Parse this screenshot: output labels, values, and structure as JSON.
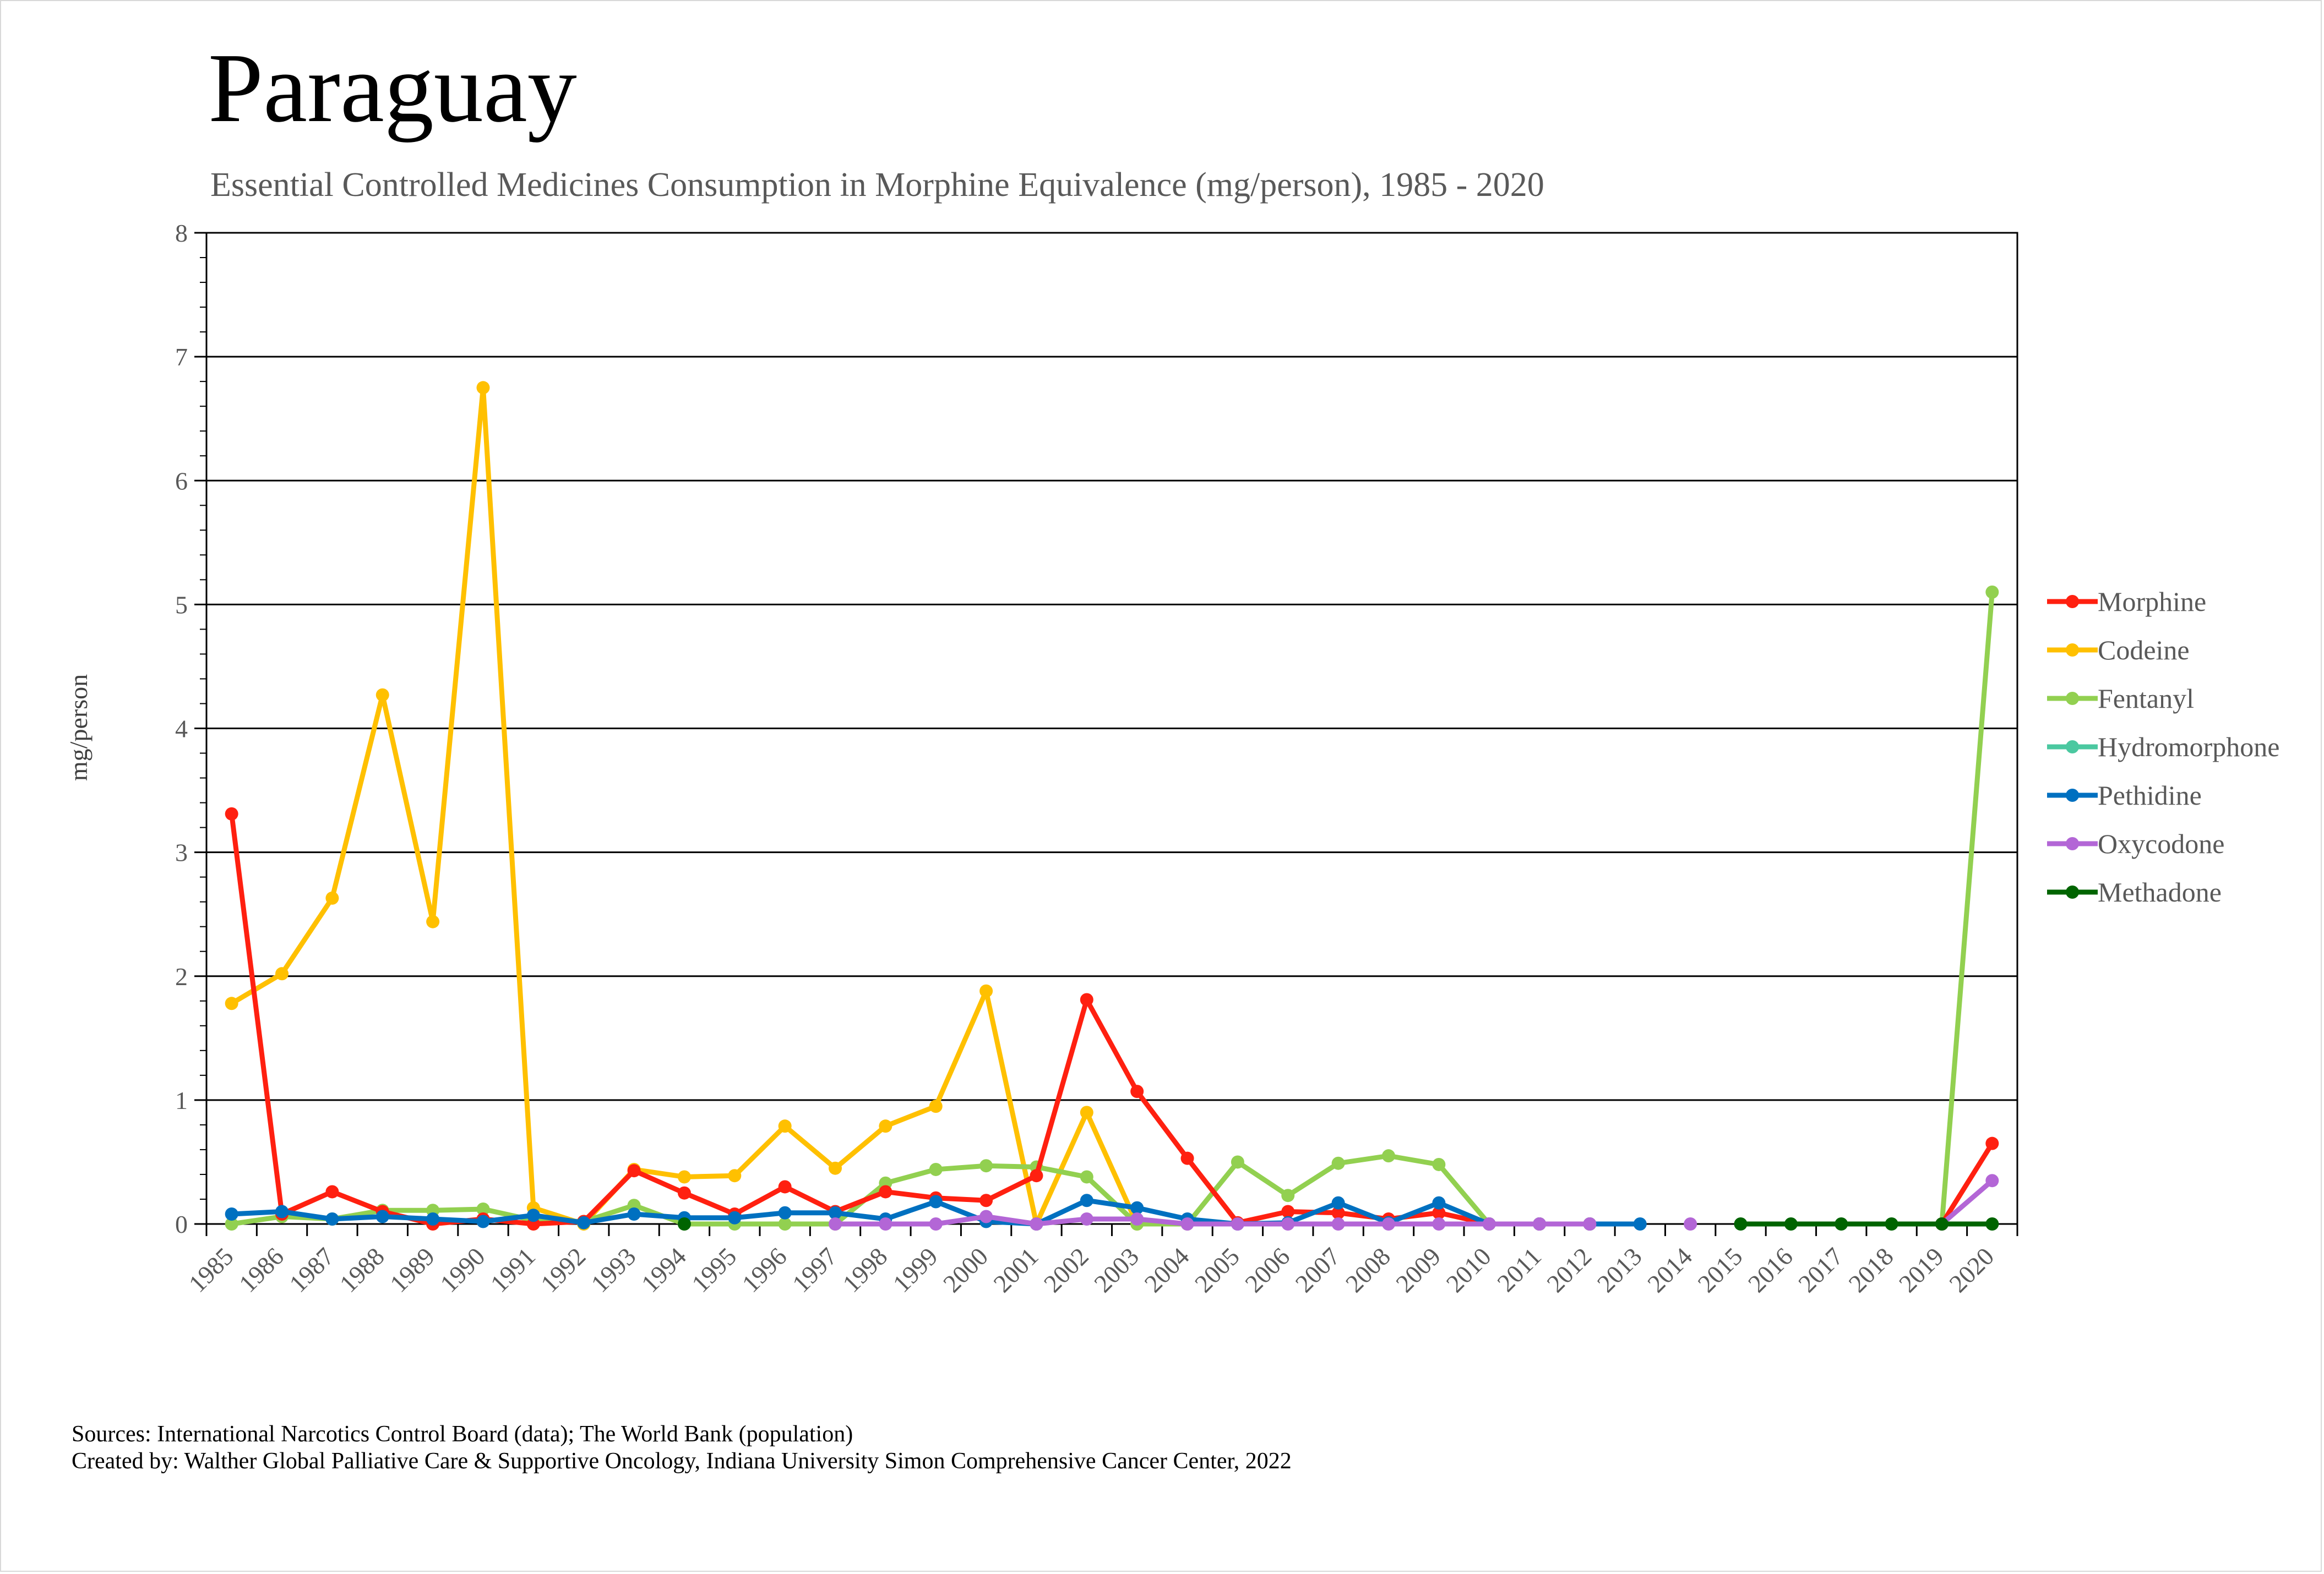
{
  "chart_data": {
    "type": "line",
    "title": "Paraguay",
    "subtitle": "Essential Controlled Medicines Consumption in Morphine Equivalence (mg/person), 1985 - 2020",
    "ylabel": "mg/person",
    "xlabel": "",
    "ylim": [
      0,
      8
    ],
    "yticks": [
      0,
      1,
      2,
      3,
      4,
      5,
      6,
      7,
      8
    ],
    "grid": "horizontal major gridlines",
    "legend": "right",
    "x": [
      "1985",
      "1986",
      "1987",
      "1988",
      "1989",
      "1990",
      "1991",
      "1992",
      "1993",
      "1994",
      "1995",
      "1996",
      "1997",
      "1998",
      "1999",
      "2000",
      "2001",
      "2002",
      "2003",
      "2004",
      "2005",
      "2006",
      "2007",
      "2008",
      "2009",
      "2010",
      "2011",
      "2012",
      "2013",
      "2014",
      "2015",
      "2016",
      "2017",
      "2018",
      "2019",
      "2020"
    ],
    "series": [
      {
        "name": "Codeine",
        "color": "#FFC000",
        "values": [
          1.78,
          2.02,
          2.63,
          4.27,
          2.44,
          6.75,
          0.13,
          0.0,
          0.44,
          0.38,
          0.39,
          0.79,
          0.45,
          0.79,
          0.95,
          1.88,
          0.0,
          0.9,
          0.0,
          null,
          null,
          null,
          null,
          null,
          null,
          null,
          null,
          null,
          null,
          null,
          null,
          null,
          null,
          null,
          null,
          null
        ]
      },
      {
        "name": "Fentanyl",
        "color": "#92D050",
        "values": [
          0.0,
          0.06,
          0.04,
          0.11,
          0.11,
          0.12,
          0.03,
          0.02,
          0.15,
          0.0,
          0.0,
          0.0,
          0.0,
          0.33,
          0.44,
          0.47,
          0.46,
          0.38,
          0.0,
          0.0,
          0.5,
          0.23,
          0.49,
          0.55,
          0.48,
          0.0,
          0.0,
          0.0,
          null,
          null,
          null,
          null,
          null,
          null,
          0.0,
          5.1
        ]
      },
      {
        "name": "Hydromorphone",
        "color": "#4BC8A0",
        "values": [
          null,
          null,
          null,
          null,
          null,
          null,
          null,
          null,
          null,
          null,
          null,
          null,
          null,
          null,
          null,
          null,
          null,
          null,
          null,
          null,
          null,
          null,
          null,
          null,
          null,
          null,
          null,
          null,
          null,
          null,
          null,
          null,
          null,
          null,
          null,
          null
        ]
      },
      {
        "name": "Morphine",
        "color": "#FF2010",
        "values": [
          3.31,
          0.08,
          0.26,
          0.1,
          0.0,
          0.04,
          0.0,
          0.02,
          0.43,
          0.25,
          0.08,
          0.3,
          0.1,
          0.26,
          0.21,
          0.19,
          0.39,
          1.81,
          1.07,
          0.53,
          0.01,
          0.1,
          0.09,
          0.04,
          0.09,
          0.0,
          0.0,
          0.0,
          null,
          null,
          null,
          null,
          null,
          null,
          0.0,
          0.65
        ]
      },
      {
        "name": "Pethidine",
        "color": "#0070C0",
        "values": [
          0.08,
          0.1,
          0.04,
          0.06,
          0.04,
          0.02,
          0.07,
          0.01,
          0.08,
          0.05,
          0.05,
          0.09,
          0.09,
          0.04,
          0.18,
          0.02,
          0.0,
          0.19,
          0.13,
          0.04,
          0.0,
          0.01,
          0.17,
          0.01,
          0.17,
          0.0,
          0.0,
          0.0,
          0.0,
          null,
          null,
          null,
          null,
          null,
          null,
          null
        ]
      },
      {
        "name": "Oxycodone",
        "color": "#B366D6",
        "values": [
          null,
          null,
          null,
          null,
          null,
          null,
          null,
          null,
          null,
          null,
          null,
          null,
          0.0,
          0.0,
          0.0,
          0.06,
          0.0,
          0.04,
          0.04,
          0.0,
          0.0,
          0.0,
          0.0,
          0.0,
          0.0,
          0.0,
          0.0,
          0.0,
          null,
          0.0,
          null,
          null,
          null,
          null,
          0.0,
          0.35
        ]
      },
      {
        "name": "Methadone",
        "color": "#006400",
        "values": [
          null,
          null,
          null,
          null,
          null,
          null,
          null,
          null,
          null,
          0.0,
          null,
          null,
          null,
          null,
          null,
          null,
          null,
          null,
          null,
          null,
          null,
          null,
          null,
          null,
          null,
          null,
          null,
          null,
          null,
          null,
          0.0,
          0.0,
          0.0,
          0.0,
          0.0,
          0.0
        ]
      }
    ],
    "legend_order": [
      "Morphine",
      "Codeine",
      "Fentanyl",
      "Hydromorphone",
      "Pethidine",
      "Oxycodone",
      "Methadone"
    ]
  },
  "footer": {
    "sources": "Sources: International Narcotics Control Board (data); The World Bank (population)",
    "created_by": "Created by: Walther Global Palliative Care & Supportive Oncology, Indiana University Simon Comprehensive Cancer Center, 2022"
  }
}
